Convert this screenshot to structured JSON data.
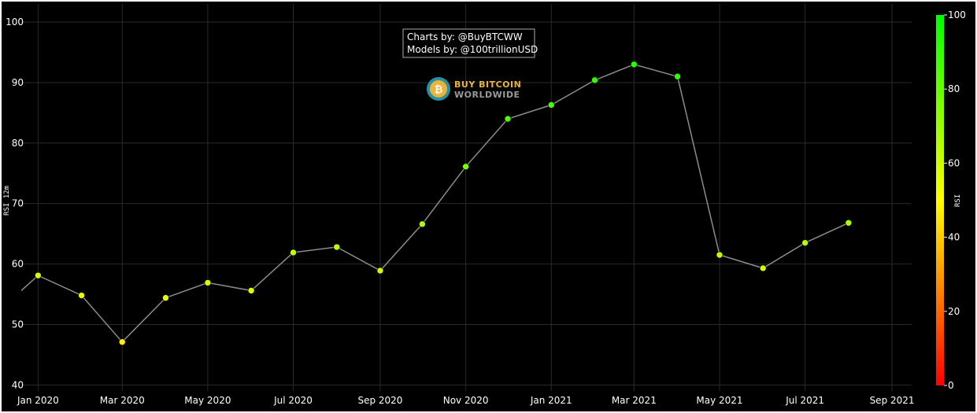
{
  "chart_data": {
    "type": "scatter",
    "mode": "lines+markers",
    "ylabel": "RSI 12m",
    "ylim": [
      39,
      103
    ],
    "yticks": [
      40,
      50,
      60,
      70,
      80,
      90,
      100
    ],
    "xlim": [
      "2019-12-20",
      "2021-09-15"
    ],
    "xticks": [
      {
        "date": "2020-01-01",
        "label": "Jan 2020"
      },
      {
        "date": "2020-03-01",
        "label": "Mar 2020"
      },
      {
        "date": "2020-05-01",
        "label": "May 2020"
      },
      {
        "date": "2020-07-01",
        "label": "Jul 2020"
      },
      {
        "date": "2020-09-01",
        "label": "Sep 2020"
      },
      {
        "date": "2020-11-01",
        "label": "Nov 2020"
      },
      {
        "date": "2021-01-01",
        "label": "Jan 2021"
      },
      {
        "date": "2021-03-01",
        "label": "Mar 2021"
      },
      {
        "date": "2021-05-01",
        "label": "May 2021"
      },
      {
        "date": "2021-07-01",
        "label": "Jul 2021"
      },
      {
        "date": "2021-09-01",
        "label": "Sep 2021"
      }
    ],
    "line_start": {
      "x": "2019-12-20",
      "y": 55.6
    },
    "points": [
      {
        "x": "2020-01-01",
        "y": 58.1
      },
      {
        "x": "2020-02-01",
        "y": 54.8
      },
      {
        "x": "2020-03-01",
        "y": 47.1
      },
      {
        "x": "2020-04-01",
        "y": 54.4
      },
      {
        "x": "2020-05-01",
        "y": 56.9
      },
      {
        "x": "2020-06-01",
        "y": 55.6
      },
      {
        "x": "2020-07-01",
        "y": 61.9
      },
      {
        "x": "2020-08-01",
        "y": 62.8
      },
      {
        "x": "2020-09-01",
        "y": 58.9
      },
      {
        "x": "2020-10-01",
        "y": 66.6
      },
      {
        "x": "2020-11-01",
        "y": 76.1
      },
      {
        "x": "2020-12-01",
        "y": 84.0
      },
      {
        "x": "2021-01-01",
        "y": 86.3
      },
      {
        "x": "2021-02-01",
        "y": 90.4
      },
      {
        "x": "2021-03-01",
        "y": 93.0
      },
      {
        "x": "2021-04-01",
        "y": 91.0
      },
      {
        "x": "2021-05-01",
        "y": 61.5
      },
      {
        "x": "2021-06-01",
        "y": 59.3
      },
      {
        "x": "2021-07-01",
        "y": 63.5
      },
      {
        "x": "2021-08-01",
        "y": 66.8
      }
    ],
    "line_color": "#8c8c8c",
    "grid": true,
    "colorbar": {
      "title": "RSI",
      "range": [
        0,
        100
      ],
      "ticks": [
        0,
        20,
        40,
        60,
        80,
        100
      ],
      "colorscale": [
        "#ff0000",
        "#ffff00",
        "#00ff00"
      ],
      "placement": "right"
    },
    "annotation": {
      "lines": [
        "Charts by: @BuyBTCWW",
        "Models by: @100trillionUSD"
      ]
    },
    "logo": {
      "line1": "BUY BITCOIN",
      "line2": "WORLDWIDE",
      "symbol": "₿"
    },
    "colors": {
      "background": "#000000",
      "grid": "#2a2a2a",
      "text": "#ffffff",
      "logo_gold": "#e8b43a",
      "logo_teal": "#2a8fa0"
    }
  }
}
